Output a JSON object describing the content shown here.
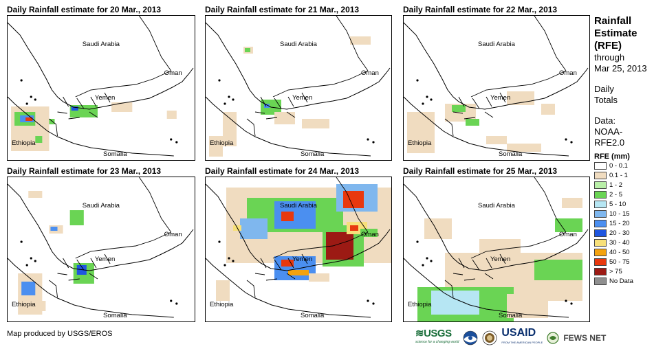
{
  "panels": [
    {
      "title": "Daily Rainfall estimate for 20 Mar., 2013"
    },
    {
      "title": "Daily Rainfall estimate for 21 Mar., 2013"
    },
    {
      "title": "Daily Rainfall estimate for 22 Mar., 2013"
    },
    {
      "title": "Daily Rainfall estimate for 23 Mar., 2013"
    },
    {
      "title": "Daily Rainfall estimate for 24 Mar., 2013"
    },
    {
      "title": "Daily Rainfall estimate for 25 Mar., 2013"
    }
  ],
  "places": {
    "saudi": "Saudi Arabia",
    "oman": "Oman",
    "yemen": "Yemen",
    "ethiopia": "Ethiopia",
    "somalia": "Somalia"
  },
  "sidebar": {
    "title_lines": [
      "Rainfall",
      "Estimate",
      "(RFE)"
    ],
    "through": "through",
    "date": "Mar 25, 2013",
    "daily_lines": [
      "Daily",
      "Totals"
    ],
    "data_lines": [
      "Data:",
      "NOAA-",
      "RFE2.0"
    ]
  },
  "legend": {
    "title": "RFE (mm)",
    "items": [
      {
        "label": "0 - 0.1",
        "color": "#ffffff"
      },
      {
        "label": "0.1 - 1",
        "color": "#f0dcc0"
      },
      {
        "label": "1 - 2",
        "color": "#b9efa8"
      },
      {
        "label": "2 - 5",
        "color": "#6ad454"
      },
      {
        "label": "5 - 10",
        "color": "#b6e6f3"
      },
      {
        "label": "10 - 15",
        "color": "#7fb7ee"
      },
      {
        "label": "15 - 20",
        "color": "#4b8ff0"
      },
      {
        "label": "20 - 30",
        "color": "#1f56e0"
      },
      {
        "label": "30 - 40",
        "color": "#f7e07a"
      },
      {
        "label": "40 - 50",
        "color": "#f3a20f"
      },
      {
        "label": "50 - 75",
        "color": "#e8380e"
      },
      {
        "label": "> 75",
        "color": "#9c1a14"
      },
      {
        "label": "No Data",
        "color": "#8f8f8f"
      }
    ]
  },
  "credit": "Map produced by USGS/EROS",
  "logos": {
    "usgs": "≋USGS",
    "usgs_tagline": "science for a changing world",
    "usaid": "USAID",
    "usaid_tagline": "FROM THE AMERICAN PEOPLE",
    "fews": "FEWS NET"
  }
}
